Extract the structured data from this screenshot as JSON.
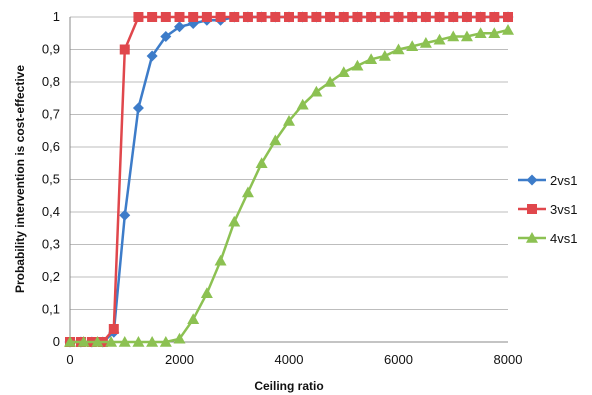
{
  "chart_data": {
    "type": "line",
    "xlabel": "Ceiling ratio",
    "ylabel": "Probability intervention is cost-effective",
    "xlim": [
      0,
      8000
    ],
    "ylim": [
      0,
      1
    ],
    "x_ticks": [
      0,
      2000,
      4000,
      6000,
      8000
    ],
    "y_ticks": [
      "0",
      "0,1",
      "0,2",
      "0,3",
      "0,4",
      "0,5",
      "0,6",
      "0,7",
      "0,8",
      "0,9",
      "1"
    ],
    "grid": "horizontal",
    "legend_position": "right",
    "series": [
      {
        "name": "2vs1",
        "color": "#3d7cc9",
        "marker": "diamond",
        "x": [
          0,
          200,
          400,
          600,
          800,
          1000,
          1250,
          1500,
          1750,
          2000,
          2250,
          2500,
          2750,
          3000,
          3250,
          3500,
          3750,
          4000,
          4250,
          4500,
          4750,
          5000,
          5250,
          5500,
          5750,
          6000,
          6250,
          6500,
          6750,
          7000,
          7250,
          7500,
          7750,
          8000
        ],
        "y": [
          0,
          0,
          0,
          0,
          0.03,
          0.39,
          0.72,
          0.88,
          0.94,
          0.97,
          0.98,
          0.99,
          0.99,
          1,
          1,
          1,
          1,
          1,
          1,
          1,
          1,
          1,
          1,
          1,
          1,
          1,
          1,
          1,
          1,
          1,
          1,
          1,
          1,
          1
        ]
      },
      {
        "name": "3vs1",
        "color": "#e0474c",
        "marker": "square",
        "x": [
          0,
          200,
          400,
          600,
          800,
          1000,
          1250,
          1500,
          1750,
          2000,
          2250,
          2500,
          2750,
          3000,
          3250,
          3500,
          3750,
          4000,
          4250,
          4500,
          4750,
          5000,
          5250,
          5500,
          5750,
          6000,
          6250,
          6500,
          6750,
          7000,
          7250,
          7500,
          7750,
          8000
        ],
        "y": [
          0,
          0,
          0,
          0,
          0.04,
          0.9,
          1,
          1,
          1,
          1,
          1,
          1,
          1,
          1,
          1,
          1,
          1,
          1,
          1,
          1,
          1,
          1,
          1,
          1,
          1,
          1,
          1,
          1,
          1,
          1,
          1,
          1,
          1,
          1
        ]
      },
      {
        "name": "4vs1",
        "color": "#8cc152",
        "marker": "triangle",
        "x": [
          0,
          250,
          500,
          750,
          1000,
          1250,
          1500,
          1750,
          2000,
          2250,
          2500,
          2750,
          3000,
          3250,
          3500,
          3750,
          4000,
          4250,
          4500,
          4750,
          5000,
          5250,
          5500,
          5750,
          6000,
          6250,
          6500,
          6750,
          7000,
          7250,
          7500,
          7750,
          8000
        ],
        "y": [
          0,
          0,
          0,
          0,
          0,
          0,
          0,
          0,
          0.01,
          0.07,
          0.15,
          0.25,
          0.37,
          0.46,
          0.55,
          0.62,
          0.68,
          0.73,
          0.77,
          0.8,
          0.83,
          0.85,
          0.87,
          0.88,
          0.9,
          0.91,
          0.92,
          0.93,
          0.94,
          0.94,
          0.95,
          0.95,
          0.96
        ]
      }
    ]
  }
}
